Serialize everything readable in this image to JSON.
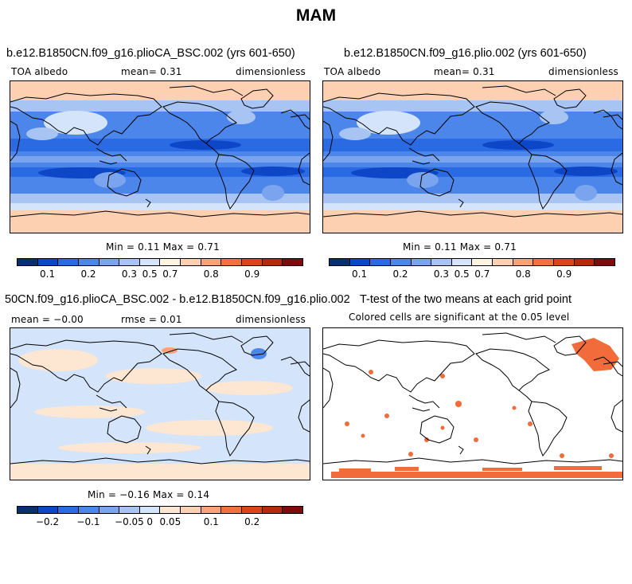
{
  "suptitle": "MAM",
  "colors": {
    "abs_scale": [
      "#08306b",
      "#0d47c8",
      "#2a6ae3",
      "#4d86ea",
      "#7ba4ee",
      "#a8c4f3",
      "#d4e4fa",
      "#fff3e1",
      "#fdd0b2",
      "#f9a27a",
      "#f3713f",
      "#dc4417",
      "#b52a0f",
      "#7f0c0c"
    ],
    "diff_scale": [
      "#08306b",
      "#0d47c8",
      "#2a6ae3",
      "#4d86ea",
      "#7ba4ee",
      "#a8c4f3",
      "#d4e4fa",
      "#fde6d2",
      "#fdd0b2",
      "#f9a27a",
      "#f3713f",
      "#dc4417",
      "#b52a0f",
      "#7f0c0c"
    ],
    "land_outline": "#000000",
    "significant": "#f26b3a"
  },
  "chart_data": [
    {
      "type": "heatmap",
      "title": "b.e12.B1850CN.f09_g16.plioCA_BSC.002 (yrs 601-650)",
      "left_label": "TOA albedo",
      "center_label": "mean=   0.31",
      "right_label": "dimensionless",
      "minmax_label": "Min =   0.11 Max =   0.71",
      "min": 0.11,
      "max": 0.71,
      "mean": 0.31,
      "colorbar_ticks": [
        "0.1",
        "0.2",
        "0.3",
        "0.5",
        "0.7",
        "0.8",
        "0.9"
      ]
    },
    {
      "type": "heatmap",
      "title": "b.e12.B1850CN.f09_g16.plio.002 (yrs 601-650)",
      "left_label": "TOA albedo",
      "center_label": "mean=   0.31",
      "right_label": "dimensionless",
      "minmax_label": "Min =   0.11 Max =   0.71",
      "min": 0.11,
      "max": 0.71,
      "mean": 0.31,
      "colorbar_ticks": [
        "0.1",
        "0.2",
        "0.3",
        "0.5",
        "0.7",
        "0.8",
        "0.9"
      ]
    },
    {
      "type": "heatmap",
      "title": "50CN.f09_g16.plioCA_BSC.002 - b.e12.B1850CN.f09_g16.plio.002",
      "left_label": "mean =  −0.00",
      "center_label": "rmse =   0.01",
      "right_label": "dimensionless",
      "minmax_label": "Min =  −0.16 Max =   0.14",
      "min": -0.16,
      "max": 0.14,
      "mean": -0.0,
      "rmse": 0.01,
      "colorbar_ticks": [
        "−0.2",
        "−0.1",
        "−0.05",
        "0",
        "0.05",
        "0.1",
        "0.2"
      ]
    },
    {
      "type": "heatmap",
      "title": "T-test of the two means at each grid point",
      "subtitle": "Colored cells are significant at the 0.05 level"
    }
  ]
}
